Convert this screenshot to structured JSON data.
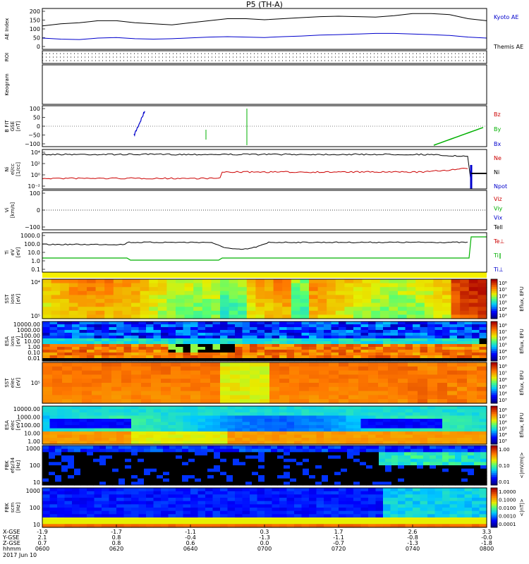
{
  "title": "P5 (TH-A)",
  "chart_data": [
    {
      "panel": "ae",
      "type": "line",
      "ylabel": "AE Index",
      "ticks": [
        "200",
        "150",
        "100",
        "50",
        "0"
      ],
      "ylim": [
        0,
        200
      ],
      "x": [
        0,
        5,
        10,
        15,
        20,
        25,
        30,
        35,
        40,
        45,
        50,
        55,
        60,
        65,
        70,
        75,
        80,
        85,
        90,
        95,
        100,
        105,
        110,
        115,
        120
      ],
      "series": [
        {
          "name": "Kyoto AE",
          "color": "#0000cc",
          "values": [
            55,
            50,
            48,
            55,
            58,
            52,
            50,
            52,
            56,
            60,
            62,
            60,
            58,
            62,
            65,
            70,
            72,
            75,
            78,
            78,
            75,
            72,
            68,
            60,
            55
          ]
        },
        {
          "name": "Themis AE",
          "color": "#000000",
          "values": [
            115,
            125,
            130,
            140,
            140,
            130,
            125,
            120,
            130,
            140,
            150,
            150,
            145,
            150,
            155,
            160,
            162,
            160,
            158,
            165,
            175,
            175,
            170,
            150,
            140
          ]
        }
      ]
    },
    {
      "panel": "roi",
      "type": "scatter",
      "ylabel": "ROI"
    },
    {
      "panel": "keogram",
      "type": "heatmap",
      "ylabel": "Keogram"
    },
    {
      "panel": "bfit",
      "type": "line",
      "ylabel": "B FIT\nGSE\n[nT]",
      "ticks": [
        "100",
        "50",
        "0",
        "−50",
        "−100"
      ],
      "ylim": [
        -100,
        100
      ],
      "series": [
        {
          "name": "Bz",
          "color": "#cc0000"
        },
        {
          "name": "By",
          "color": "#00b000"
        },
        {
          "name": "Bx",
          "color": "#0000cc"
        }
      ]
    },
    {
      "panel": "density",
      "type": "line",
      "ylabel": "Ni\nel/cc\n[1/cc]",
      "ticks": [
        "10⁴",
        "10²",
        "10⁰",
        "10⁻²"
      ],
      "log": true,
      "series": [
        {
          "name": "Ne",
          "color": "#cc0000"
        },
        {
          "name": "Ni",
          "color": "#000000"
        },
        {
          "name": "Npot",
          "color": "#0000cc"
        }
      ]
    },
    {
      "panel": "velocity",
      "type": "line",
      "ylabel": "Vi\n[km/s]",
      "ticks": [
        "100",
        "0",
        "−100"
      ],
      "ylim": [
        -100,
        100
      ],
      "series": [
        {
          "name": "Viz",
          "color": "#cc0000"
        },
        {
          "name": "Viy",
          "color": "#00b000"
        },
        {
          "name": "Vix",
          "color": "#0000cc"
        },
        {
          "name": "Tell",
          "color": "#000000"
        }
      ]
    },
    {
      "panel": "temperature",
      "type": "line",
      "ylabel": "Ti\neV\n[eV]",
      "ticks": [
        "1000.0",
        "100.0",
        "10.0",
        "1.0",
        "0.1"
      ],
      "log": true,
      "series": [
        {
          "name": "Te⊥",
          "color": "#cc0000"
        },
        {
          "name": "Ti∥",
          "color": "#00b000"
        },
        {
          "name": "Ti⊥",
          "color": "#0000cc"
        }
      ]
    },
    {
      "panel": "sst_i",
      "type": "heatmap",
      "ylabel": "SST\nions\n[eV]",
      "ticks": [
        "10⁴",
        "10⁵"
      ],
      "cbar": "Eflux, EFU"
    },
    {
      "panel": "esa_i",
      "type": "heatmap",
      "ylabel": "ESA\nions\n[eV]",
      "ticks": [
        "10000.00",
        "1000.00",
        "100.00",
        "10.00",
        "1.00",
        "0.10",
        "0.01"
      ],
      "cbar": "Eflux, EFU"
    },
    {
      "panel": "sst_e",
      "type": "heatmap",
      "ylabel": "SST\nelec\n[eV]",
      "ticks": [
        "10⁵"
      ],
      "cbar": "Eflux, EFU"
    },
    {
      "panel": "esa_e",
      "type": "heatmap",
      "ylabel": "ESA\nelec\n[eV]",
      "ticks": [
        "10000.00",
        "1000.00",
        "100.00",
        "10.00",
        "1.00"
      ],
      "cbar": "Eflux, EFU"
    },
    {
      "panel": "fbk_e",
      "type": "heatmap",
      "ylabel": "FBK\nefp/34\n[Hz]",
      "ticks": [
        "1000",
        "100",
        "10"
      ],
      "cbar": "<|mV/m|>",
      "cbar_ticks": [
        "1.00",
        "0.10",
        "0.01"
      ]
    },
    {
      "panel": "fbk_b",
      "type": "heatmap",
      "ylabel": "FBK\nscm\n[Hz]",
      "ticks": [
        "1000",
        "100",
        "10"
      ],
      "cbar": "<|nT|>",
      "cbar_ticks": [
        "1.0000",
        "0.1000",
        "0.0100",
        "0.0010",
        "0.0001"
      ]
    }
  ],
  "colorbar_ticks": [
    "10⁸",
    "10⁷",
    "10⁶",
    "10⁵",
    "10⁴",
    "10³"
  ],
  "xaxis": {
    "row_labels": [
      "X-GSE",
      "Y-GSE",
      "Z-GSE",
      "hhmm",
      "2017 Jun 10"
    ],
    "columns": [
      [
        "-1.9",
        "2.1",
        "0.7",
        "0600"
      ],
      [
        "-1.7",
        "0.8",
        "0.8",
        "0620"
      ],
      [
        "-1.1",
        "-0.4",
        "0.6",
        "0640"
      ],
      [
        "0.3",
        "-1.3",
        "0.0",
        "0700"
      ],
      [
        "1.7",
        "-1.1",
        "-0.7",
        "0720"
      ],
      [
        "2.6",
        "-0.8",
        "-1.3",
        "0740"
      ],
      [
        "3.3",
        "-0.0",
        "-1.8",
        "0800"
      ]
    ]
  }
}
